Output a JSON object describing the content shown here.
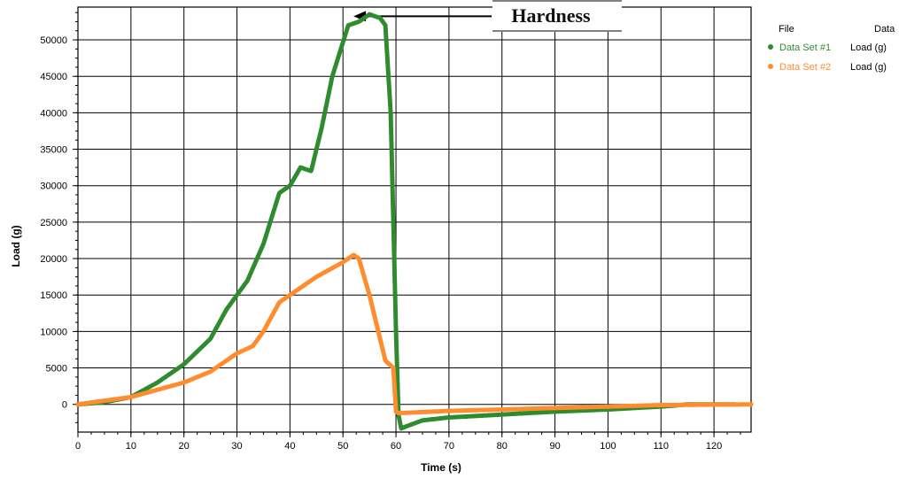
{
  "chart_data": {
    "type": "line",
    "xlabel": "Time (s)",
    "ylabel": "Load (g)",
    "xlim": [
      0,
      127
    ],
    "ylim": [
      -3800,
      54500
    ],
    "x_ticks": [
      0,
      10,
      20,
      30,
      40,
      50,
      60,
      70,
      80,
      90,
      100,
      110,
      120
    ],
    "y_ticks": [
      0,
      5000,
      10000,
      15000,
      20000,
      25000,
      30000,
      35000,
      40000,
      45000,
      50000
    ],
    "grid": true,
    "annotation": {
      "text": "Hardness",
      "x": 57,
      "y": 53000
    },
    "legend": {
      "placement": "right",
      "headers": {
        "file": "File",
        "data": "Data"
      },
      "entries": [
        {
          "file": "Data Set #1",
          "data": "Load (g)",
          "color": "#2e8b2e"
        },
        {
          "file": "Data Set #2",
          "data": "Load (g)",
          "color": "#ff8c2e"
        }
      ]
    },
    "series": [
      {
        "name": "Data Set #1",
        "color": "#2e8b2e",
        "points": [
          [
            0,
            0
          ],
          [
            5,
            300
          ],
          [
            10,
            1000
          ],
          [
            15,
            3000
          ],
          [
            20,
            5500
          ],
          [
            25,
            9000
          ],
          [
            28,
            13000
          ],
          [
            32,
            17000
          ],
          [
            35,
            22000
          ],
          [
            38,
            29000
          ],
          [
            40,
            30000
          ],
          [
            42,
            32500
          ],
          [
            44,
            32000
          ],
          [
            46,
            38000
          ],
          [
            48,
            45000
          ],
          [
            51,
            52000
          ],
          [
            53,
            52500
          ],
          [
            55,
            53500
          ],
          [
            57,
            53000
          ],
          [
            58,
            52000
          ],
          [
            59,
            40000
          ],
          [
            60,
            10000
          ],
          [
            60.5,
            -1500
          ],
          [
            61,
            -3300
          ],
          [
            62,
            -3000
          ],
          [
            65,
            -2200
          ],
          [
            70,
            -1800
          ],
          [
            80,
            -1400
          ],
          [
            90,
            -1000
          ],
          [
            100,
            -700
          ],
          [
            110,
            -300
          ],
          [
            115,
            0
          ],
          [
            124,
            0
          ]
        ]
      },
      {
        "name": "Data Set #2",
        "color": "#ff8c2e",
        "points": [
          [
            0,
            0
          ],
          [
            10,
            1000
          ],
          [
            15,
            2000
          ],
          [
            20,
            3000
          ],
          [
            25,
            4500
          ],
          [
            30,
            7000
          ],
          [
            33,
            8000
          ],
          [
            35,
            10000
          ],
          [
            38,
            14000
          ],
          [
            40,
            15000
          ],
          [
            45,
            17500
          ],
          [
            50,
            19500
          ],
          [
            52,
            20500
          ],
          [
            53,
            20000
          ],
          [
            55,
            15000
          ],
          [
            57,
            9000
          ],
          [
            58,
            6000
          ],
          [
            59.5,
            5000
          ],
          [
            60,
            -1000
          ],
          [
            60.5,
            -1200
          ],
          [
            70,
            -900
          ],
          [
            80,
            -700
          ],
          [
            90,
            -500
          ],
          [
            100,
            -300
          ],
          [
            110,
            -100
          ],
          [
            127,
            0
          ]
        ]
      }
    ]
  }
}
